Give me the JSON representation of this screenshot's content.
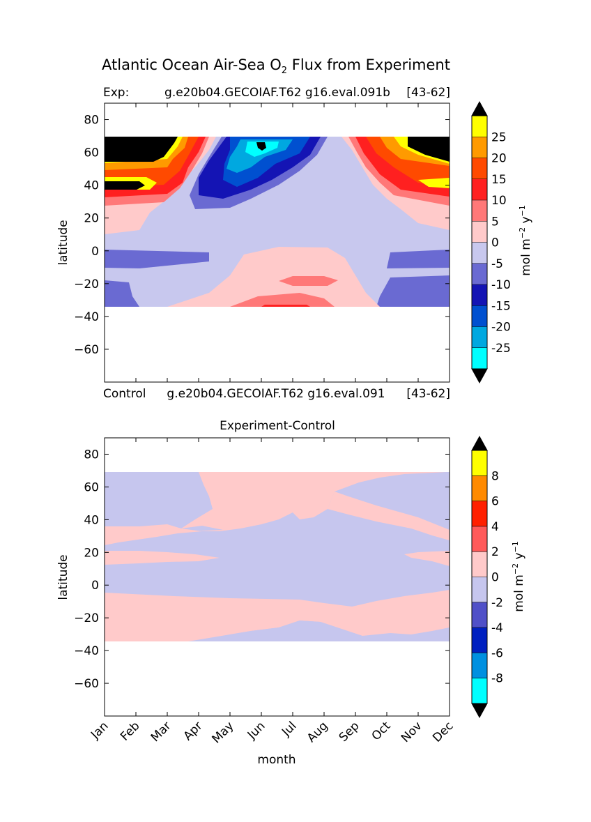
{
  "figure": {
    "title_prefix": "Atlantic Ocean Air-Sea O",
    "title_sub": "2",
    "title_suffix": " Flux from Experiment"
  },
  "chart_data": [
    {
      "type": "heatmap",
      "title_left": "Exp:",
      "title_center": "g.e20b04.GECOIAF.T62 g16.eval.091b",
      "title_right": "[43-62]",
      "ylabel": "latitude",
      "xlim": [
        1,
        12
      ],
      "ylim": [
        -80,
        90
      ],
      "yticks": [
        80,
        60,
        40,
        20,
        0,
        -20,
        -40,
        -60
      ],
      "data_lat_range": [
        -34,
        69
      ],
      "colorbar": {
        "label_main": "mol m",
        "label_exp1": "−2",
        "label_mid": " y",
        "label_exp2": "−1",
        "levels": [
          -30,
          -25,
          -20,
          -15,
          -10,
          -5,
          0,
          5,
          10,
          15,
          20,
          25,
          30
        ],
        "colors": [
          "#00ffff",
          "#00a8e0",
          "#0050d0",
          "#1414b4",
          "#6a6ad2",
          "#c8c8ee",
          "#ffcaca",
          "#ff7878",
          "#ff2020",
          "#ff4a00",
          "#ff9a00",
          "#ffff00"
        ],
        "tick_values": [
          25,
          20,
          15,
          10,
          5,
          0,
          -5,
          -10,
          -15,
          -20,
          -25
        ],
        "tick_labels": [
          "25",
          "20",
          "15",
          "10",
          "5",
          "0",
          "-5",
          "-10",
          "-15",
          "-20",
          "-25"
        ],
        "extend_low_color": "#000000",
        "extend_high_color": "#000000"
      }
    },
    {
      "type": "heatmap",
      "title_left": "Control",
      "title_center": "g.e20b04.GECOIAF.T62 g16.eval.091",
      "title_right": "[43-62]",
      "subplot_title": "Experiment-Control",
      "xlabel": "month",
      "ylabel": "latitude",
      "xticks": [
        "Jan",
        "Feb",
        "Mar",
        "Apr",
        "May",
        "Jun",
        "Jul",
        "Aug",
        "Sep",
        "Oct",
        "Nov",
        "Dec"
      ],
      "xlim": [
        1,
        12
      ],
      "ylim": [
        -80,
        90
      ],
      "yticks": [
        80,
        60,
        40,
        20,
        0,
        -20,
        -40,
        -60
      ],
      "data_lat_range": [
        -34,
        69
      ],
      "colorbar": {
        "label_main": "mol m",
        "label_exp1": "−2",
        "label_mid": " y",
        "label_exp2": "−1",
        "levels": [
          -10,
          -8,
          -6,
          -4,
          -2,
          0,
          2,
          4,
          6,
          8,
          10
        ],
        "colors": [
          "#00ffff",
          "#0090e0",
          "#0020c0",
          "#5050c8",
          "#c6c6ee",
          "#ffcaca",
          "#ff5a5a",
          "#ff2000",
          "#ff8a00",
          "#ffff00"
        ],
        "tick_values": [
          8,
          6,
          4,
          2,
          0,
          -2,
          -4,
          -6,
          -8
        ],
        "tick_labels": [
          "8",
          "6",
          "4",
          "2",
          "0",
          "-2",
          "-4",
          "-6",
          "-8"
        ],
        "extend_low_color": "#000000",
        "extend_high_color": "#000000"
      }
    }
  ]
}
